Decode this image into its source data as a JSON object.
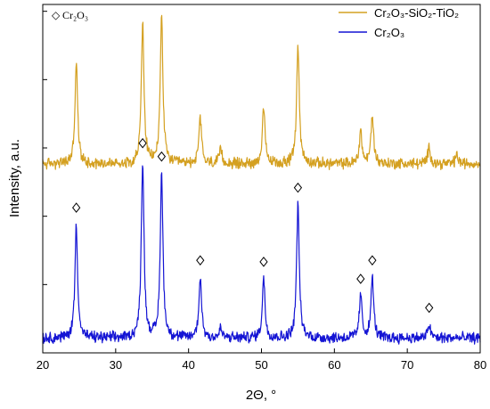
{
  "chart_data": {
    "type": "line",
    "xlabel": "2Θ, °",
    "ylabel": "Intensity, a.u.",
    "xlim": [
      20,
      80
    ],
    "x_ticks": [
      20,
      30,
      40,
      50,
      60,
      70,
      80
    ],
    "x_tick_labels": [
      "20",
      "30",
      "40",
      "50",
      "60",
      "70",
      "80"
    ],
    "y_tick_count": 5,
    "ylim": [
      0,
      470
    ],
    "grid": false,
    "legend_position": "top-right",
    "legend": [
      {
        "label": "Cr₂O₃-SiO₂-TiO₂",
        "color": "#d4a020"
      },
      {
        "label": "Cr₂O₃",
        "color": "#1414d4"
      }
    ],
    "marker_legend": {
      "symbol": "◇",
      "label": "Cr₂O₃"
    },
    "series": [
      {
        "name": "Cr₂O₃-SiO₂-TiO₂",
        "color": "#d4a020",
        "baseline": 255,
        "noise": 6,
        "peaks": [
          {
            "x": 24.6,
            "height": 135
          },
          {
            "x": 33.7,
            "height": 190
          },
          {
            "x": 36.3,
            "height": 200
          },
          {
            "x": 41.6,
            "height": 62
          },
          {
            "x": 44.4,
            "height": 18
          },
          {
            "x": 50.3,
            "height": 73
          },
          {
            "x": 55.0,
            "height": 160
          },
          {
            "x": 63.6,
            "height": 44
          },
          {
            "x": 65.2,
            "height": 65
          },
          {
            "x": 73.0,
            "height": 22
          },
          {
            "x": 76.8,
            "height": 12
          }
        ]
      },
      {
        "name": "Cr₂O₃",
        "color": "#1414d4",
        "baseline": 20,
        "noise": 6,
        "peaks": [
          {
            "x": 24.6,
            "height": 153
          },
          {
            "x": 33.7,
            "height": 240
          },
          {
            "x": 36.3,
            "height": 222
          },
          {
            "x": 41.6,
            "height": 82
          },
          {
            "x": 44.4,
            "height": 12
          },
          {
            "x": 50.3,
            "height": 80
          },
          {
            "x": 55.0,
            "height": 180
          },
          {
            "x": 63.6,
            "height": 57
          },
          {
            "x": 65.2,
            "height": 82
          },
          {
            "x": 73.0,
            "height": 18
          }
        ]
      }
    ],
    "diamond_markers": [
      24.6,
      33.7,
      36.3,
      41.6,
      50.3,
      55.0,
      63.6,
      65.2,
      73.0
    ]
  }
}
